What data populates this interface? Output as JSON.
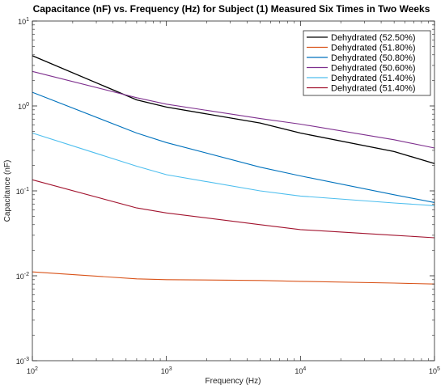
{
  "chart_data": {
    "type": "line",
    "title": "Capacitance (nF) vs. Frequency (Hz) for Subject (1) Measured Six Times in Two Weeks",
    "xlabel": "Frequency (Hz)",
    "ylabel": "Capacitance (nF)",
    "xscale": "log",
    "yscale": "log",
    "xlim": [
      100,
      100000
    ],
    "ylim": [
      0.001,
      10
    ],
    "x_ticks": [
      {
        "value": 100,
        "base": "10",
        "exp": "2"
      },
      {
        "value": 1000,
        "base": "10",
        "exp": "3"
      },
      {
        "value": 10000,
        "base": "10",
        "exp": "4"
      },
      {
        "value": 100000,
        "base": "10",
        "exp": "5"
      }
    ],
    "y_ticks": [
      {
        "value": 0.001,
        "base": "10",
        "exp": "-3"
      },
      {
        "value": 0.01,
        "base": "10",
        "exp": "-2"
      },
      {
        "value": 0.1,
        "base": "10",
        "exp": "-1"
      },
      {
        "value": 1,
        "base": "10",
        "exp": "0"
      },
      {
        "value": 10,
        "base": "10",
        "exp": "1"
      }
    ],
    "grid": false,
    "box": true,
    "legend_position": "top-right",
    "x": [
      100,
      600,
      1000,
      5000,
      10000,
      50000,
      100000
    ],
    "series": [
      {
        "name": "Dehydrated (52.50%)",
        "color": "#000000",
        "values": [
          3.9,
          1.18,
          0.97,
          0.63,
          0.48,
          0.29,
          0.21
        ]
      },
      {
        "name": "Dehydrated (51.80%)",
        "color": "#d95319",
        "values": [
          0.0111,
          0.0092,
          0.009,
          0.0088,
          0.0086,
          0.0082,
          0.008
        ]
      },
      {
        "name": "Dehydrated (50.80%)",
        "color": "#0072bd",
        "values": [
          1.45,
          0.48,
          0.37,
          0.19,
          0.15,
          0.09,
          0.073
        ]
      },
      {
        "name": "Dehydrated (50.60%)",
        "color": "#7e2f8e",
        "values": [
          2.55,
          1.25,
          1.05,
          0.71,
          0.61,
          0.4,
          0.32
        ]
      },
      {
        "name": "Dehydrated (51.40%)",
        "color": "#4dbeee",
        "values": [
          0.48,
          0.195,
          0.155,
          0.1,
          0.087,
          0.072,
          0.067
        ]
      },
      {
        "name": "Dehydrated (51.40%)",
        "color": "#a2142f",
        "values": [
          0.135,
          0.063,
          0.055,
          0.04,
          0.035,
          0.03,
          0.028
        ]
      }
    ]
  }
}
